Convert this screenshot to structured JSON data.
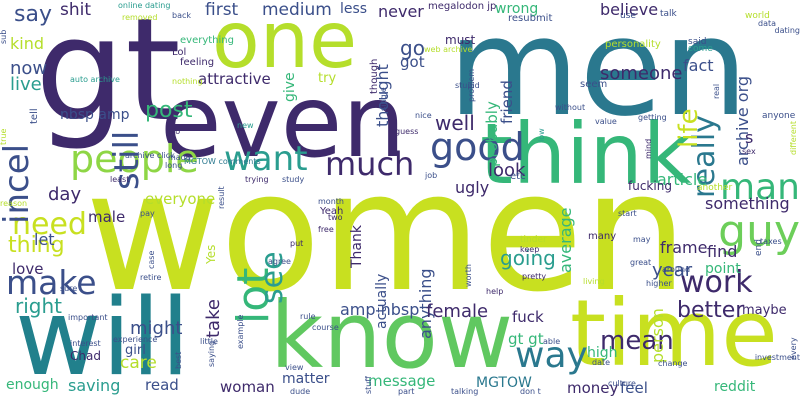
{
  "palette": {
    "dark_purple": "#3b1f5c",
    "blue": "#31688e",
    "teal": "#21918c",
    "green": "#35b779",
    "light_green": "#90d743",
    "yellow": "#d2e21b"
  },
  "words": [
    {
      "text": "women",
      "color": "#c8e020"
    },
    {
      "text": "gt",
      "color": "#3e2a6b"
    },
    {
      "text": "men",
      "color": "#2a788e"
    },
    {
      "text": "one",
      "color": "#b5de2b"
    },
    {
      "text": "even",
      "color": "#3e2a6b"
    },
    {
      "text": "think",
      "color": "#35b779"
    },
    {
      "text": "will",
      "color": "#21808c"
    },
    {
      "text": "know",
      "color": "#60c860"
    },
    {
      "text": "time",
      "color": "#c8e020"
    },
    {
      "text": "people",
      "color": "#8ed645"
    },
    {
      "text": "want",
      "color": "#2a9d8f"
    },
    {
      "text": "much",
      "color": "#3e2a6b"
    },
    {
      "text": "good",
      "color": "#3b4f8a"
    },
    {
      "text": "guy",
      "color": "#6cce59"
    },
    {
      "text": "man",
      "color": "#35b779"
    },
    {
      "text": "work",
      "color": "#3e2a6b"
    },
    {
      "text": "make",
      "color": "#3b4f8a"
    },
    {
      "text": "need",
      "color": "#c8e020"
    },
    {
      "text": "incel",
      "color": "#3b4f8a"
    },
    {
      "text": "lot",
      "color": "#35b779"
    },
    {
      "text": "see",
      "color": "#2a9d8f"
    },
    {
      "text": "way",
      "color": "#2a788e"
    },
    {
      "text": "really",
      "color": "#2a788e"
    },
    {
      "text": "still",
      "color": "#3b4f8a"
    },
    {
      "text": "life",
      "color": "#c8e020"
    },
    {
      "text": "mean",
      "color": "#3e2a6b"
    },
    {
      "text": "better",
      "color": "#3e2a6b"
    },
    {
      "text": "say",
      "color": "#3b4f8a"
    },
    {
      "text": "shit",
      "color": "#3e2a6b"
    },
    {
      "text": "first",
      "color": "#3b4f8a"
    },
    {
      "text": "medium",
      "color": "#3b4f8a"
    },
    {
      "text": "less",
      "color": "#3b4f8a"
    },
    {
      "text": "never",
      "color": "#3e2a6b"
    },
    {
      "text": "megalodon jp",
      "color": "#3e2a6b"
    },
    {
      "text": "wrong",
      "color": "#35b779"
    },
    {
      "text": "believe",
      "color": "#3e2a6b"
    },
    {
      "text": "kind",
      "color": "#b5de2b"
    },
    {
      "text": "now",
      "color": "#3b4f8a"
    },
    {
      "text": "live",
      "color": "#2a9d8f"
    },
    {
      "text": "go",
      "color": "#3b4f8a"
    },
    {
      "text": "got",
      "color": "#3b4f8a"
    },
    {
      "text": "thought",
      "color": "#3b4f8a"
    },
    {
      "text": "friend",
      "color": "#3b4f8a"
    },
    {
      "text": "someone",
      "color": "#3e2a6b"
    },
    {
      "text": "fact",
      "color": "#3b4f8a"
    },
    {
      "text": "post",
      "color": "#35b779"
    },
    {
      "text": "attractive",
      "color": "#3e2a6b"
    },
    {
      "text": "give",
      "color": "#35b779"
    },
    {
      "text": "try",
      "color": "#b5de2b"
    },
    {
      "text": "probably",
      "color": "#35b779"
    },
    {
      "text": "archive org",
      "color": "#3b4f8a"
    },
    {
      "text": "s",
      "color": "#3e2a6b"
    },
    {
      "text": "well",
      "color": "#3e2a6b"
    },
    {
      "text": "look",
      "color": "#3e2a6b"
    },
    {
      "text": "day",
      "color": "#3e2a6b"
    },
    {
      "text": "male",
      "color": "#3e2a6b"
    },
    {
      "text": "everyone",
      "color": "#b5de2b"
    },
    {
      "text": "ugly",
      "color": "#3e2a6b"
    },
    {
      "text": "article",
      "color": "#35b779"
    },
    {
      "text": "fucking",
      "color": "#3e2a6b"
    },
    {
      "text": "something",
      "color": "#3e2a6b"
    },
    {
      "text": "going",
      "color": "#2a9d8f"
    },
    {
      "text": "average",
      "color": "#35b779"
    },
    {
      "text": "find",
      "color": "#3e2a6b"
    },
    {
      "text": "frame",
      "color": "#3e2a6b"
    },
    {
      "text": "thing",
      "color": "#c8e020"
    },
    {
      "text": "let",
      "color": "#3b4f8a"
    },
    {
      "text": "love",
      "color": "#3e2a6b"
    },
    {
      "text": "right",
      "color": "#2a9d8f"
    },
    {
      "text": "year",
      "color": "#3b4f8a"
    },
    {
      "text": "point",
      "color": "#35b779"
    },
    {
      "text": "amp nbsp",
      "color": "#3b4f8a"
    },
    {
      "text": "actually",
      "color": "#3b4f8a"
    },
    {
      "text": "anything",
      "color": "#3b4f8a"
    },
    {
      "text": "female",
      "color": "#3e2a6b"
    },
    {
      "text": "fuck",
      "color": "#3e2a6b"
    },
    {
      "text": "person",
      "color": "#b5de2b"
    },
    {
      "text": "maybe",
      "color": "#3e2a6b"
    },
    {
      "text": "might",
      "color": "#3b4f8a"
    },
    {
      "text": "take",
      "color": "#3e2a6b"
    },
    {
      "text": "girl",
      "color": "#3b4f8a"
    },
    {
      "text": "care",
      "color": "#b5de2b"
    },
    {
      "text": "gt gt",
      "color": "#35b779"
    },
    {
      "text": "high",
      "color": "#35b779"
    },
    {
      "text": "enough",
      "color": "#35b779"
    },
    {
      "text": "saving",
      "color": "#2a9d8f"
    },
    {
      "text": "read",
      "color": "#3b4f8a"
    },
    {
      "text": "woman",
      "color": "#3e2a6b"
    },
    {
      "text": "matter",
      "color": "#3b4f8a"
    },
    {
      "text": "message",
      "color": "#35b779"
    },
    {
      "text": "MGTOW",
      "color": "#2a788e"
    },
    {
      "text": "money",
      "color": "#3e2a6b"
    },
    {
      "text": "feel",
      "color": "#3b4f8a"
    },
    {
      "text": "reddit",
      "color": "#35b779"
    },
    {
      "text": "nbsp amp",
      "color": "#3b4f8a"
    },
    {
      "text": "Lol",
      "color": "#3e2a6b"
    },
    {
      "text": "Yeah",
      "color": "#3e2a6b"
    },
    {
      "text": "Chad",
      "color": "#3e2a6b"
    },
    {
      "text": "Yes",
      "color": "#b5de2b"
    },
    {
      "text": "Thank",
      "color": "#3e2a6b"
    },
    {
      "text": "everything",
      "color": "#35b779"
    },
    {
      "text": "feeling",
      "color": "#3e2a6b"
    },
    {
      "text": "though",
      "color": "#3e2a6b"
    },
    {
      "text": "web archive",
      "color": "#b5de2b"
    },
    {
      "text": "must",
      "color": "#3e2a6b"
    },
    {
      "text": "resubmit",
      "color": "#3b4f8a"
    },
    {
      "text": "use",
      "color": "#3b4f8a"
    },
    {
      "text": "world",
      "color": "#b5de2b"
    },
    {
      "text": "data",
      "color": "#3b4f8a"
    },
    {
      "text": "dating",
      "color": "#3b4f8a"
    },
    {
      "text": "talk",
      "color": "#3b4f8a"
    },
    {
      "text": "personality",
      "color": "#b5de2b"
    },
    {
      "text": "said",
      "color": "#3b4f8a"
    },
    {
      "text": "come",
      "color": "#2a9d8f"
    },
    {
      "text": "seem",
      "color": "#3b4f8a"
    },
    {
      "text": "auto archive",
      "color": "#2a9d8f"
    },
    {
      "text": "online dating",
      "color": "#2a9d8f"
    },
    {
      "text": "removed",
      "color": "#b5de2b"
    },
    {
      "text": "back",
      "color": "#3b4f8a"
    },
    {
      "text": "sub",
      "color": "#3b4f8a"
    },
    {
      "text": "tell",
      "color": "#3b4f8a"
    },
    {
      "text": "nothing",
      "color": "#b5de2b"
    },
    {
      "text": "MGTOW comments",
      "color": "#2a788e"
    },
    {
      "text": "new",
      "color": "#2a9d8f"
    },
    {
      "text": "bio",
      "color": "#3e2a6b"
    },
    {
      "text": "made",
      "color": "#3b4f8a"
    },
    {
      "text": "long",
      "color": "#3b4f8a"
    },
    {
      "text": "least",
      "color": "#3e2a6b"
    },
    {
      "text": "month",
      "color": "#3b4f8a"
    },
    {
      "text": "two",
      "color": "#3e2a6b"
    },
    {
      "text": "free",
      "color": "#3e2a6b"
    },
    {
      "text": "nice",
      "color": "#3b4f8a"
    },
    {
      "text": "guess",
      "color": "#3e2a6b"
    },
    {
      "text": "job",
      "color": "#3b4f8a"
    },
    {
      "text": "etc",
      "color": "#3b4f8a"
    },
    {
      "text": "study",
      "color": "#3b4f8a"
    },
    {
      "text": "trying",
      "color": "#3e2a6b"
    },
    {
      "text": "result",
      "color": "#3b4f8a"
    },
    {
      "text": "another",
      "color": "#b5de2b"
    },
    {
      "text": "tinder",
      "color": "#b5de2b"
    },
    {
      "text": "keep",
      "color": "#3e2a6b"
    },
    {
      "text": "many",
      "color": "#3e2a6b"
    },
    {
      "text": "may",
      "color": "#3b4f8a"
    },
    {
      "text": "start",
      "color": "#3b4f8a"
    },
    {
      "text": "value",
      "color": "#3b4f8a"
    },
    {
      "text": "getting",
      "color": "#3b4f8a"
    },
    {
      "text": "real",
      "color": "#3b4f8a"
    },
    {
      "text": "without",
      "color": "#3b4f8a"
    },
    {
      "text": "stupid",
      "color": "#3b4f8a"
    },
    {
      "text": "single",
      "color": "#3b4f8a"
    },
    {
      "text": "problem",
      "color": "#3b4f8a"
    },
    {
      "text": "anyone",
      "color": "#3b4f8a"
    },
    {
      "text": "different",
      "color": "#b5de2b"
    },
    {
      "text": "sex",
      "color": "#3e2a6b"
    },
    {
      "text": "taxes",
      "color": "#3b4f8a"
    },
    {
      "text": "end",
      "color": "#3b4f8a"
    },
    {
      "text": "around",
      "color": "#3b4f8a"
    },
    {
      "text": "great",
      "color": "#3b4f8a"
    },
    {
      "text": "higher",
      "color": "#3b4f8a"
    },
    {
      "text": "living",
      "color": "#b5de2b"
    },
    {
      "text": "pretty",
      "color": "#3e2a6b"
    },
    {
      "text": "help",
      "color": "#3e2a6b"
    },
    {
      "text": "worth",
      "color": "#3b4f8a"
    },
    {
      "text": "mind",
      "color": "#3e2a6b"
    },
    {
      "text": "low",
      "color": "#2a9d8f"
    },
    {
      "text": "true",
      "color": "#b5de2b"
    },
    {
      "text": "archive click",
      "color": "#3b4f8a"
    },
    {
      "text": "reason",
      "color": "#b5de2b"
    },
    {
      "text": "pay",
      "color": "#3b4f8a"
    },
    {
      "text": "case",
      "color": "#3b4f8a"
    },
    {
      "text": "sure",
      "color": "#3b4f8a"
    },
    {
      "text": "important",
      "color": "#3b4f8a"
    },
    {
      "text": "retire",
      "color": "#3b4f8a"
    },
    {
      "text": "little",
      "color": "#3b4f8a"
    },
    {
      "text": "agree",
      "color": "#3b4f8a"
    },
    {
      "text": "put",
      "color": "#3e2a6b"
    },
    {
      "text": "course",
      "color": "#3b4f8a"
    },
    {
      "text": "rule",
      "color": "#3b4f8a"
    },
    {
      "text": "example",
      "color": "#3b4f8a"
    },
    {
      "text": "saying",
      "color": "#3b4f8a"
    },
    {
      "text": "best",
      "color": "#3b4f8a"
    },
    {
      "text": "interest",
      "color": "#3b4f8a"
    },
    {
      "text": "experience",
      "color": "#3b4f8a"
    },
    {
      "text": "view",
      "color": "#3b4f8a"
    },
    {
      "text": "dude",
      "color": "#3b4f8a"
    },
    {
      "text": "stuff",
      "color": "#3b4f8a"
    },
    {
      "text": "part",
      "color": "#3b4f8a"
    },
    {
      "text": "talking",
      "color": "#3b4f8a"
    },
    {
      "text": "don t",
      "color": "#3b4f8a"
    },
    {
      "text": "able",
      "color": "#3b4f8a"
    },
    {
      "text": "date",
      "color": "#3b4f8a"
    },
    {
      "text": "culture",
      "color": "#3b4f8a"
    },
    {
      "text": "change",
      "color": "#3b4f8a"
    },
    {
      "text": "investment",
      "color": "#3b4f8a"
    },
    {
      "text": "every",
      "color": "#3b4f8a"
    },
    {
      "text": "big",
      "color": "#3b4f8a"
    },
    {
      "text": "power",
      "color": "#2a9d8f"
    },
    {
      "text": "kid",
      "color": "#3b4f8a"
    }
  ]
}
